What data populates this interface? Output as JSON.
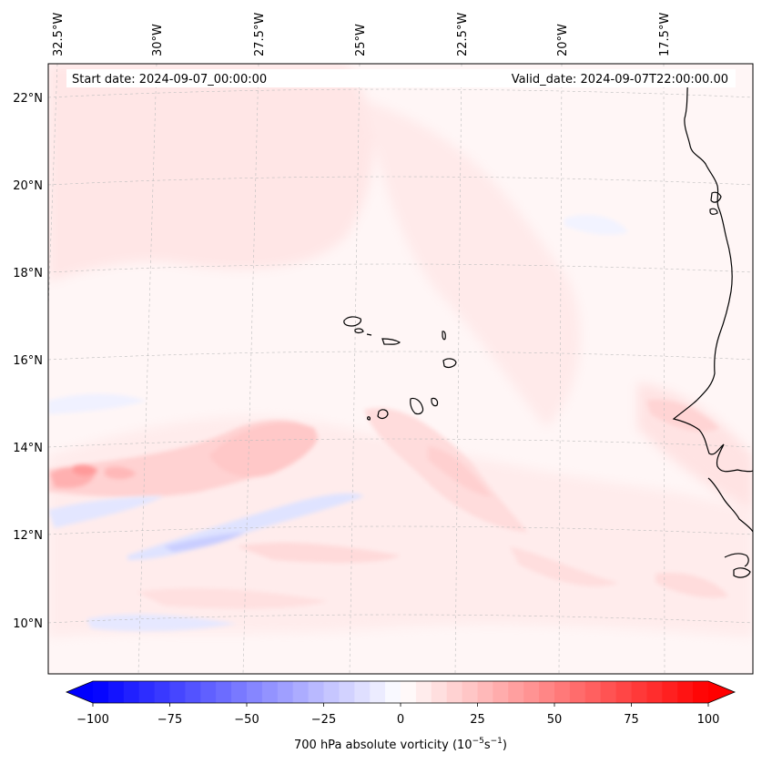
{
  "header": {
    "start_date": "Start date: 2024-09-07_00:00:00",
    "valid_date": "Valid_date: 2024-09-07T22:00:00.00"
  },
  "axes": {
    "lon_labels": [
      "32.5°W",
      "30°W",
      "27.5°W",
      "25°W",
      "22.5°W",
      "20°W",
      "17.5°W"
    ],
    "lat_labels": [
      "22°N",
      "20°N",
      "18°N",
      "16°N",
      "14°N",
      "12°N",
      "10°N"
    ]
  },
  "colorbar": {
    "ticks": [
      "−100",
      "−75",
      "−50",
      "−25",
      "0",
      "25",
      "50",
      "75",
      "100"
    ],
    "label_main": "700 hPa absolute vorticity (10",
    "label_exp1": "−5",
    "label_mid": "s",
    "label_exp2": "−1",
    "label_end": ")",
    "min_color": "#0000ff",
    "mid_color": "#ffffff",
    "max_color": "#ff0000"
  }
}
